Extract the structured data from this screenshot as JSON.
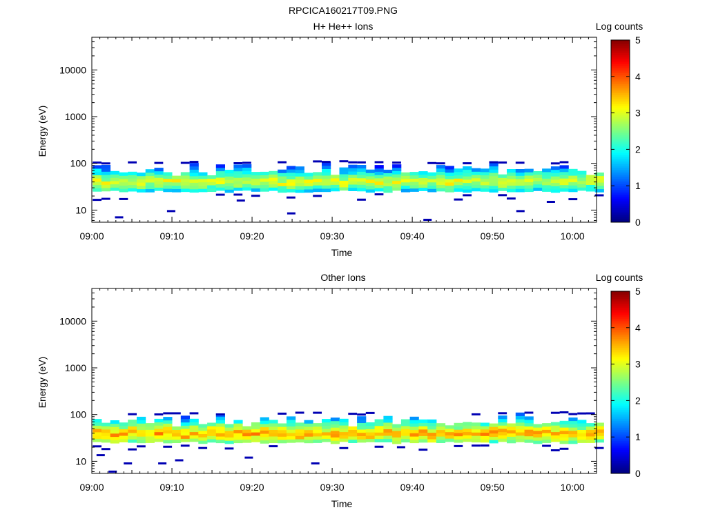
{
  "figure_title": "RPCICA160217T09.PNG",
  "chart_data": [
    {
      "type": "heatmap",
      "title": "H+ He++ Ions",
      "xlabel": "Time",
      "ylabel": "Energy (eV)",
      "x_ticks": [
        "09:00",
        "09:10",
        "09:20",
        "09:30",
        "09:40",
        "09:50",
        "10:00"
      ],
      "x_range_minutes": [
        0,
        63
      ],
      "y_scale": "log",
      "y_ticks": [
        10,
        100,
        1000,
        10000
      ],
      "y_tick_labels": [
        "10",
        "100",
        "1000",
        "10000"
      ],
      "ylim": [
        5.5,
        50000
      ],
      "colorbar_label": "Log counts",
      "colorbar_ticks": [
        "0",
        "1",
        "2",
        "3",
        "4",
        "5"
      ],
      "colorbar_range": [
        0,
        5
      ],
      "band_center_ev": 38,
      "band_peak_log_counts": 3.1,
      "band_upper_ev": 95,
      "band_lower_ev": 25,
      "sparse_low_hits": [
        {
          "t": 3.4,
          "e": 7
        },
        {
          "t": 9.9,
          "e": 9.5
        },
        {
          "t": 18.6,
          "e": 16
        },
        {
          "t": 24.9,
          "e": 8.5
        },
        {
          "t": 41.9,
          "e": 6.2
        },
        {
          "t": 53.5,
          "e": 9.5
        },
        {
          "t": 57.3,
          "e": 15
        }
      ],
      "grid": false
    },
    {
      "type": "heatmap",
      "title": "Other Ions",
      "xlabel": "Time",
      "ylabel": "Energy (eV)",
      "x_ticks": [
        "09:00",
        "09:10",
        "09:20",
        "09:30",
        "09:40",
        "09:50",
        "10:00"
      ],
      "x_range_minutes": [
        0,
        63
      ],
      "y_scale": "log",
      "y_ticks": [
        10,
        100,
        1000,
        10000
      ],
      "y_tick_labels": [
        "10",
        "100",
        "1000",
        "10000"
      ],
      "ylim": [
        5.5,
        50000
      ],
      "colorbar_label": "Log counts",
      "colorbar_ticks": [
        "0",
        "1",
        "2",
        "3",
        "4",
        "5"
      ],
      "colorbar_range": [
        0,
        5
      ],
      "band_center_ev": 36,
      "band_peak_log_counts": 3.6,
      "band_upper_ev": 95,
      "band_lower_ev": 25,
      "sparse_low_hits": [
        {
          "t": 1.1,
          "e": 13.5
        },
        {
          "t": 2.6,
          "e": 6
        },
        {
          "t": 4.5,
          "e": 9
        },
        {
          "t": 8.8,
          "e": 9
        },
        {
          "t": 10.9,
          "e": 10.5
        },
        {
          "t": 19.6,
          "e": 12
        },
        {
          "t": 27.9,
          "e": 9
        },
        {
          "t": 38.6,
          "e": 20
        }
      ],
      "grid": false
    }
  ]
}
